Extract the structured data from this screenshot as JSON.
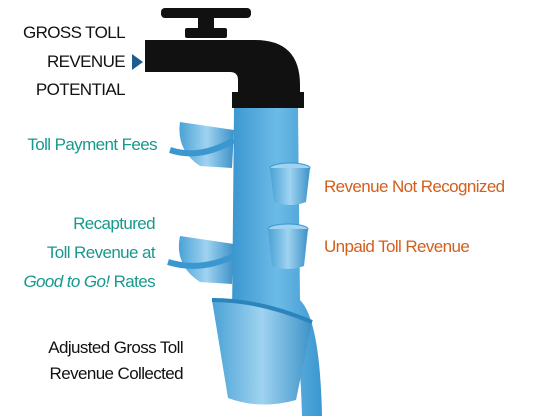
{
  "source": {
    "lines": [
      "GROSS TOLL",
      "REVENUE",
      "POTENTIAL"
    ]
  },
  "toll_payment_fees": "Toll Payment Fees",
  "revenue_not_recognized": "Revenue Not Recognized",
  "recaptured": {
    "lines": [
      "Recaptured",
      "Toll Revenue at"
    ],
    "program": "Good to Go!",
    "suffix": "Rates"
  },
  "unpaid_toll_revenue": "Unpaid Toll Revenue",
  "collected": {
    "lines": [
      "Adjusted Gross Toll",
      "Revenue Collected"
    ]
  }
}
